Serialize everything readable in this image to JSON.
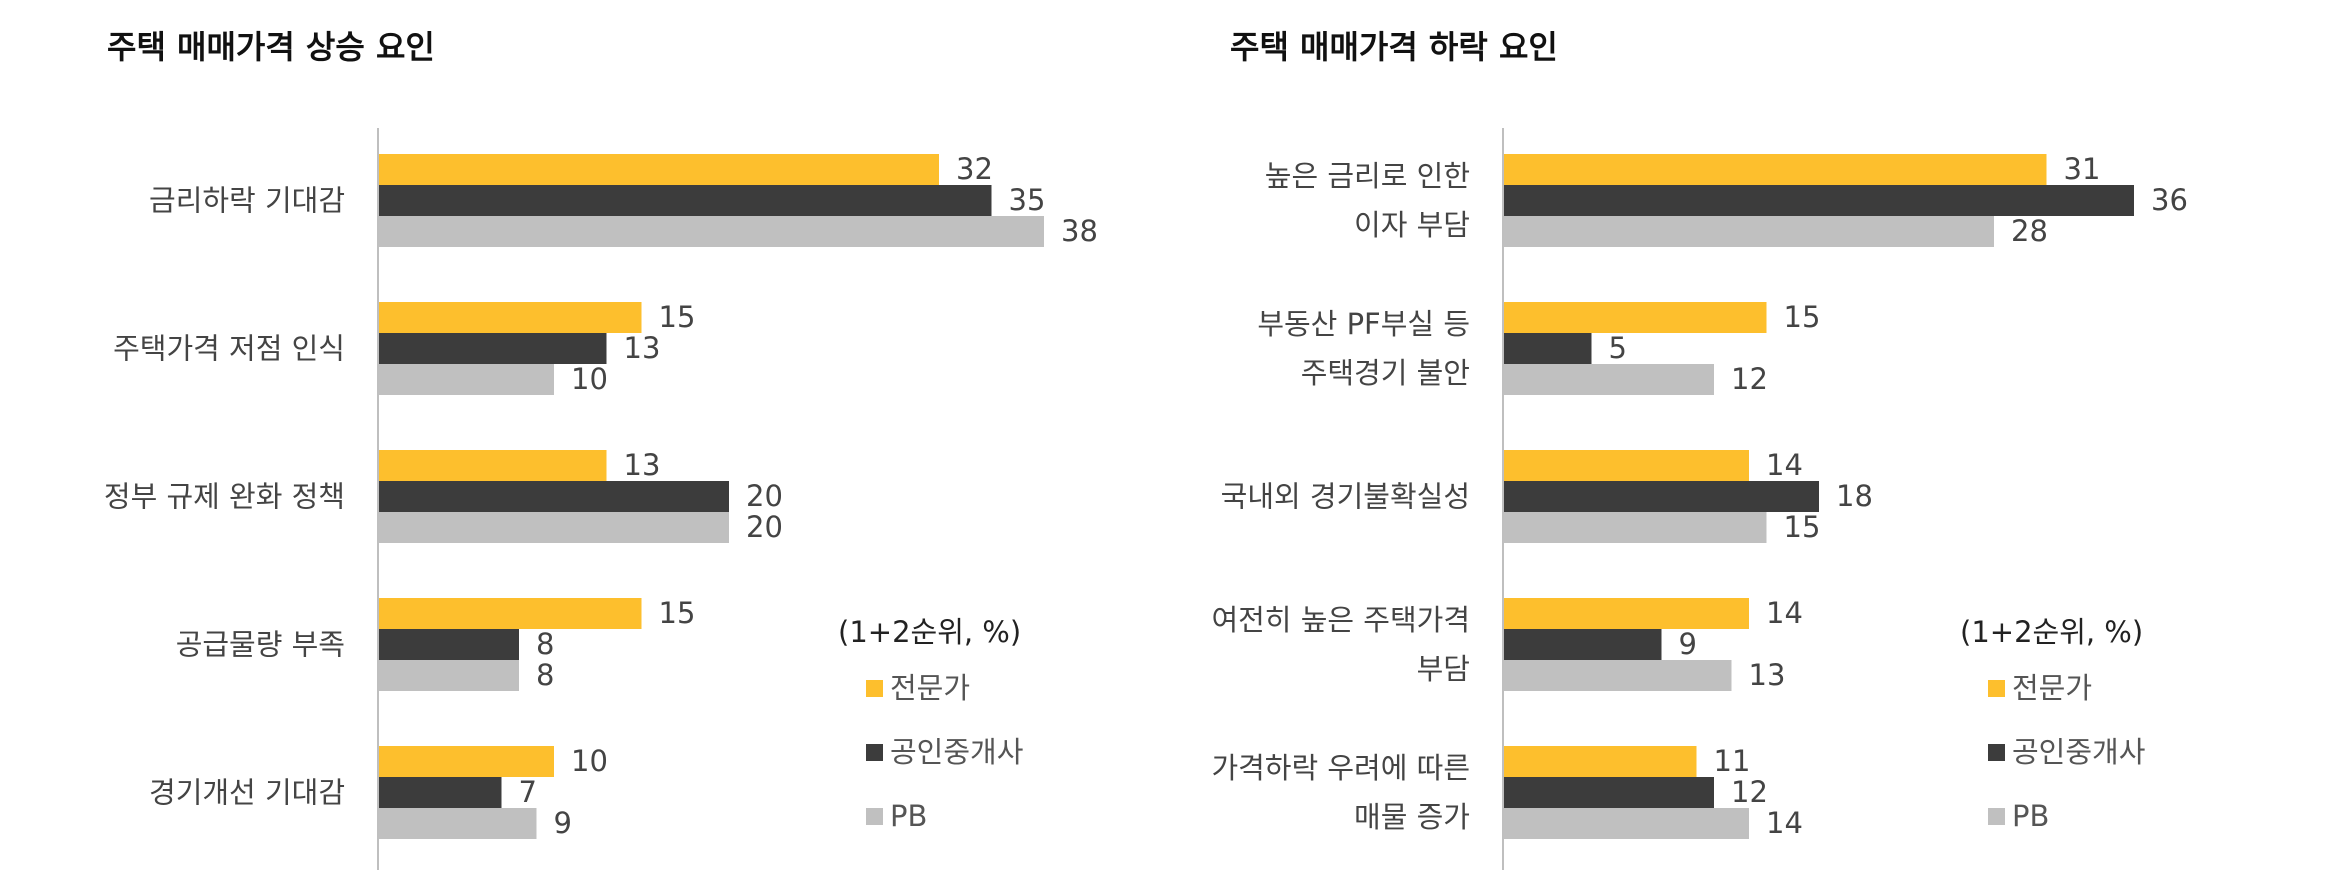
{
  "charts": [
    {
      "title": "주택 매매가격 상승 요인",
      "note": "(1+2순위, %)"
    },
    {
      "title": "주택 매매가격 하락 요인",
      "note": "(1+2순위, %)"
    }
  ],
  "colors": {
    "전문가": "#FDBF2D",
    "공인중개사": "#3C3C3C",
    "PB": "#C0C0C0",
    "axis": "#BFBFBF"
  },
  "chart_data": [
    {
      "type": "bar",
      "orientation": "horizontal",
      "title": "주택 매매가격 상승 요인",
      "categories": [
        [
          "금리하락 기대감"
        ],
        [
          "주택가격 저점 인식"
        ],
        [
          "정부 규제 완화 정책"
        ],
        [
          "공급물량 부족"
        ],
        [
          "경기개선 기대감"
        ]
      ],
      "series": [
        {
          "name": "전문가",
          "values": [
            32,
            15,
            13,
            15,
            10
          ]
        },
        {
          "name": "공인중개사",
          "values": [
            35,
            13,
            20,
            8,
            7
          ]
        },
        {
          "name": "PB",
          "values": [
            38,
            10,
            20,
            8,
            9
          ]
        }
      ],
      "legend_position": "bottom-right",
      "grid": false
    },
    {
      "type": "bar",
      "orientation": "horizontal",
      "title": "주택 매매가격 하락 요인",
      "categories": [
        [
          "높은 금리로 인한",
          "이자 부담"
        ],
        [
          "부동산 PF부실 등",
          "주택경기 불안"
        ],
        [
          "국내외 경기불확실성"
        ],
        [
          "여전히 높은 주택가격",
          "부담"
        ],
        [
          "가격하락 우려에 따른",
          "매물 증가"
        ]
      ],
      "series": [
        {
          "name": "전문가",
          "values": [
            31,
            15,
            14,
            14,
            11
          ]
        },
        {
          "name": "공인중개사",
          "values": [
            36,
            5,
            18,
            9,
            12
          ]
        },
        {
          "name": "PB",
          "values": [
            28,
            12,
            15,
            13,
            14
          ]
        }
      ],
      "legend_position": "bottom-right",
      "grid": false
    }
  ]
}
